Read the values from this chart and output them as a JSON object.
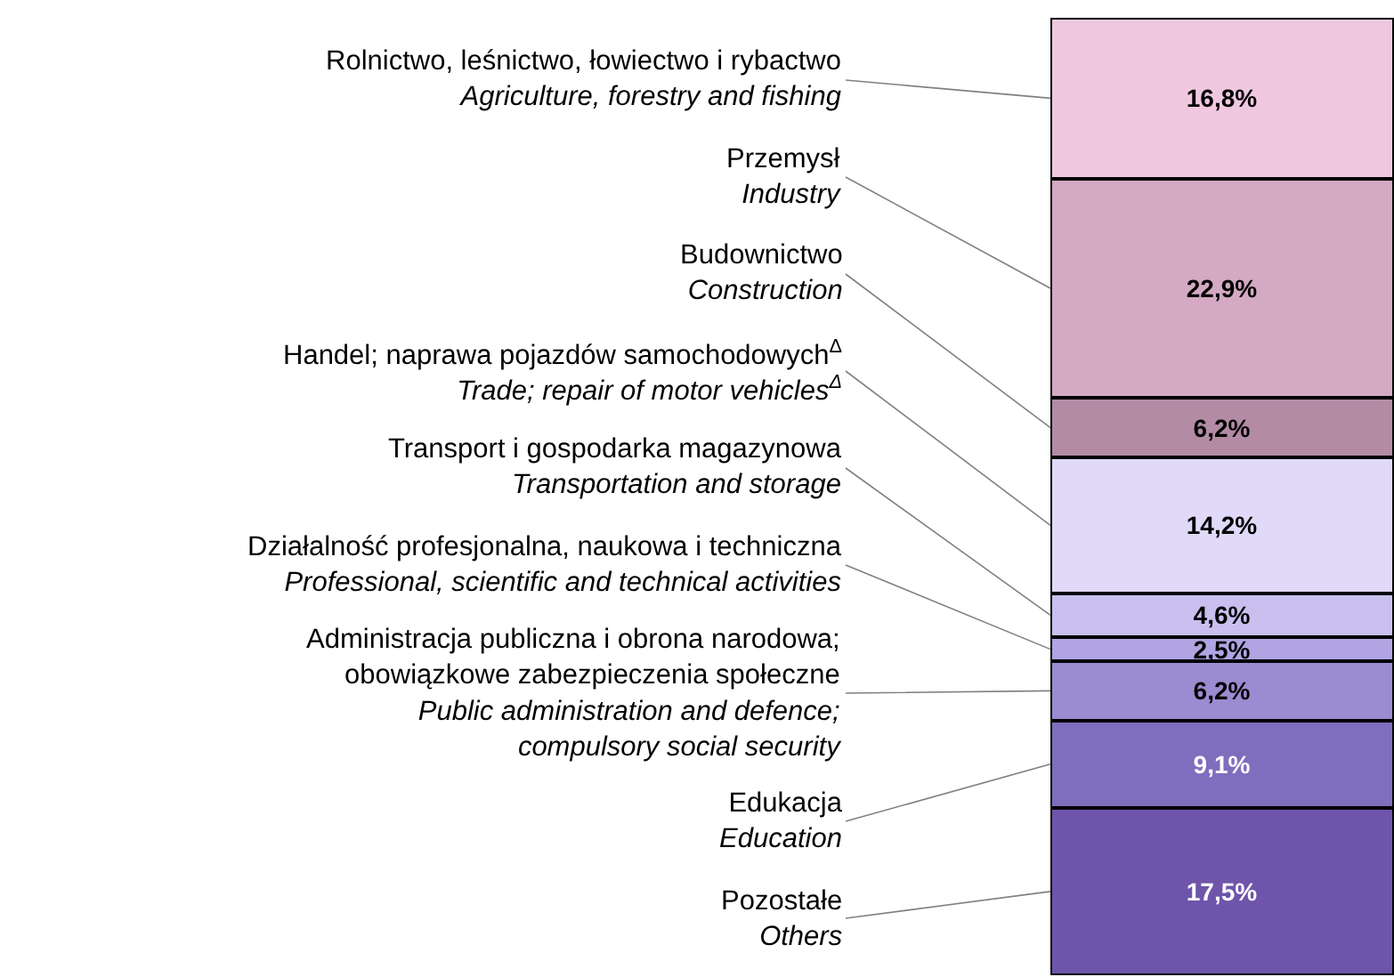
{
  "chart_data": {
    "type": "bar",
    "stacked": true,
    "categories": [
      null
    ],
    "legend": false,
    "series": [
      {
        "name": "Pozostałe\nOthers",
        "color": "#6e55ab",
        "values": [
          17.5
        ],
        "value_labels": [
          "17,5%"
        ]
      },
      {
        "name": "Edukacja\nEducation",
        "color": "#7f6dbd",
        "values": [
          9.1
        ],
        "value_labels": [
          "9,1%"
        ]
      },
      {
        "name": "Administracja publiczna i obrona narodowa;\nobowiązkowe zabezpieczenia społeczne\nPublic administration and defence;\ncompulsory social security",
        "color": "#9b8bd0",
        "values": [
          6.2
        ],
        "value_labels": [
          "6,2%"
        ]
      },
      {
        "name": "Działalność profesjonalna, naukowa i techniczna\nProfessional, scientific and technical activities",
        "color": "#b0a4e2",
        "values": [
          2.5
        ],
        "value_labels": [
          "2,5%"
        ]
      },
      {
        "name": "Transport i gospodarka magazynowa\nTransportation and storage",
        "color": "#c9bfee",
        "values": [
          4.6
        ],
        "value_labels": [
          "4,6%"
        ]
      },
      {
        "name": "Handel; naprawa pojazdów samochodowych$^{Δ}$\nTrade; repair of motor vehicles$^{Δ}$",
        "color": "#e0d9f7",
        "values": [
          14.2
        ],
        "value_labels": [
          "14,2%"
        ]
      },
      {
        "name": "Budownictwo\nConstruction",
        "color": "#b38ba4",
        "values": [
          6.2
        ],
        "value_labels": [
          "6,2%"
        ]
      },
      {
        "name": "Przemysł\nIndustry",
        "color": "#d3a9c3",
        "values": [
          22.9
        ],
        "value_labels": [
          "22,9%"
        ]
      },
      {
        "name": "Rolnictwo, leśnictwo, łowiectwo i rybactwo\nAgriculture, forestry and fishing",
        "color": "#efc8e0",
        "values": [
          16.8
        ],
        "value_labels": [
          "16,8%"
        ]
      }
    ]
  }
}
